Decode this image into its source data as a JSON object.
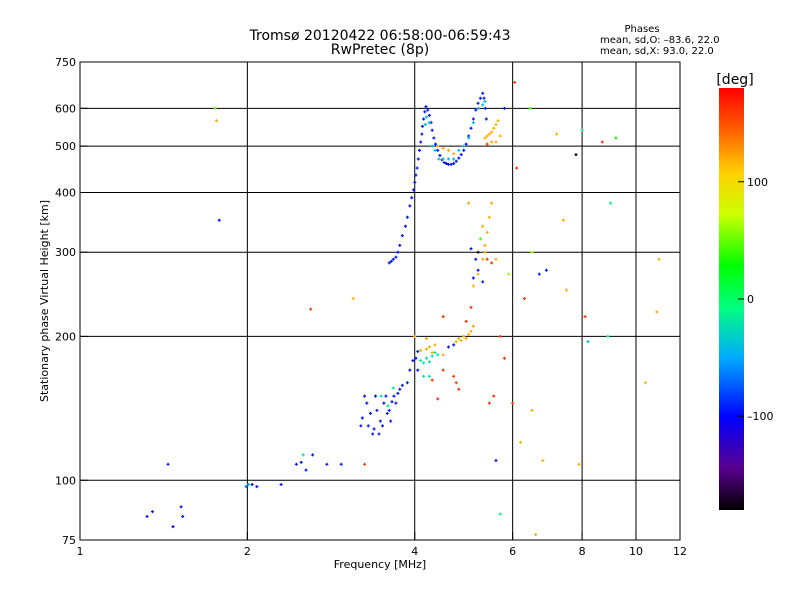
{
  "chart_data": {
    "type": "scatter",
    "title": "Tromsø 20120422 06:58:00-06:59:43",
    "subtitle": "RwPretec (8p)",
    "xlabel": "Frequency [MHz]",
    "ylabel": "Stationary phase Virtual Height [km]",
    "x_scale": "log",
    "y_scale": "log",
    "xlim": [
      1,
      12
    ],
    "ylim": [
      75,
      750
    ],
    "x_ticks": [
      1,
      2,
      4,
      6,
      8,
      10,
      12
    ],
    "x_tick_labels": [
      "1",
      "2",
      "4",
      "6",
      "8",
      "10",
      "12"
    ],
    "y_ticks": [
      75,
      100,
      200,
      300,
      400,
      500,
      600,
      750
    ],
    "y_tick_labels": [
      "75",
      "100",
      "200",
      "300",
      "400",
      "500",
      "600",
      "750"
    ],
    "grid": true,
    "phases_box": {
      "title": "Phases",
      "line_o": "mean, sd,O: –83.6, 22.0",
      "line_x": "mean, sd,X:  93.0, 22.0"
    },
    "colorbar": {
      "label": "[deg]",
      "range": [
        -180,
        180
      ],
      "ticks": [
        100,
        0,
        -100
      ],
      "tick_labels": [
        "100",
        "0",
        "–100"
      ]
    },
    "series": [
      {
        "points": [
          [
            1.78,
            350,
            -95
          ],
          [
            1.44,
            108,
            -95
          ],
          [
            1.32,
            84,
            -95
          ],
          [
            1.35,
            86,
            -95
          ],
          [
            1.47,
            80,
            -100
          ],
          [
            1.52,
            88,
            -100
          ],
          [
            1.53,
            84,
            -95
          ],
          [
            1.99,
            97,
            -70
          ],
          [
            2.01,
            98,
            -40
          ],
          [
            2.04,
            98,
            -95
          ],
          [
            2.08,
            97,
            -95
          ],
          [
            2.3,
            98,
            -95
          ],
          [
            2.45,
            108,
            -95
          ],
          [
            2.5,
            109,
            -95
          ],
          [
            2.52,
            113,
            -20
          ],
          [
            2.55,
            105,
            -95
          ],
          [
            2.62,
            113,
            -95
          ],
          [
            2.78,
            108,
            -95
          ],
          [
            2.95,
            108,
            -95
          ],
          [
            3.2,
            130,
            -95
          ],
          [
            3.22,
            135,
            -95
          ],
          [
            3.25,
            150,
            -95
          ],
          [
            3.28,
            145,
            -95
          ],
          [
            3.3,
            130,
            -95
          ],
          [
            3.33,
            138,
            -95
          ],
          [
            3.36,
            125,
            -95
          ],
          [
            3.38,
            128,
            -95
          ],
          [
            3.4,
            150,
            -95
          ],
          [
            3.42,
            140,
            -95
          ],
          [
            3.45,
            125,
            -95
          ],
          [
            3.47,
            133,
            -95
          ],
          [
            3.5,
            130,
            -95
          ],
          [
            3.52,
            145,
            -95
          ],
          [
            3.55,
            150,
            -95
          ],
          [
            3.57,
            138,
            -95
          ],
          [
            3.6,
            140,
            -95
          ],
          [
            3.62,
            133,
            -95
          ],
          [
            3.64,
            146,
            -95
          ],
          [
            3.67,
            150,
            -95
          ],
          [
            3.7,
            145,
            -95
          ],
          [
            3.73,
            152,
            -95
          ],
          [
            3.76,
            155,
            -95
          ],
          [
            3.8,
            158,
            -95
          ],
          [
            3.58,
            143,
            -20
          ],
          [
            3.48,
            150,
            -20
          ],
          [
            3.66,
            156,
            -20
          ],
          [
            3.88,
            160,
            -95
          ],
          [
            3.92,
            170,
            -95
          ],
          [
            3.97,
            178,
            -95
          ],
          [
            4.02,
            180,
            -95
          ],
          [
            4.05,
            186,
            -95
          ],
          [
            4.1,
            178,
            -20
          ],
          [
            4.15,
            176,
            -20
          ],
          [
            4.2,
            180,
            -20
          ],
          [
            4.25,
            177,
            -20
          ],
          [
            4.3,
            182,
            -20
          ],
          [
            4.35,
            185,
            -20
          ],
          [
            4.4,
            183,
            -20
          ],
          [
            4.2,
            188,
            120
          ],
          [
            4.25,
            190,
            120
          ],
          [
            4.3,
            185,
            120
          ],
          [
            4.35,
            192,
            120
          ],
          [
            4.1,
            187,
            120
          ],
          [
            4.5,
            183,
            120
          ],
          [
            4.6,
            190,
            -95
          ],
          [
            4.7,
            192,
            -95
          ],
          [
            4.75,
            195,
            120
          ],
          [
            4.8,
            198,
            120
          ],
          [
            4.85,
            196,
            120
          ],
          [
            4.9,
            200,
            120
          ],
          [
            4.95,
            198,
            120
          ],
          [
            5.0,
            202,
            120
          ],
          [
            5.05,
            205,
            120
          ],
          [
            5.1,
            210,
            120
          ],
          [
            4.5,
            170,
            160
          ],
          [
            4.7,
            165,
            160
          ],
          [
            4.75,
            160,
            160
          ],
          [
            4.8,
            155,
            160
          ],
          [
            4.4,
            148,
            160
          ],
          [
            4.3,
            162,
            160
          ],
          [
            4.95,
            215,
            160
          ],
          [
            5.05,
            230,
            160
          ],
          [
            5.1,
            255,
            120
          ],
          [
            5.2,
            270,
            120
          ],
          [
            5.3,
            290,
            120
          ],
          [
            5.35,
            310,
            120
          ],
          [
            5.4,
            330,
            120
          ],
          [
            5.45,
            355,
            120
          ],
          [
            5.5,
            380,
            120
          ],
          [
            5.2,
            275,
            -95
          ],
          [
            5.3,
            260,
            -95
          ],
          [
            5.15,
            290,
            -95
          ],
          [
            5.1,
            265,
            -95
          ],
          [
            5.05,
            305,
            -95
          ],
          [
            3.6,
            285,
            -95
          ],
          [
            3.63,
            287,
            -95
          ],
          [
            3.66,
            290,
            -95
          ],
          [
            3.7,
            293,
            -95
          ],
          [
            3.73,
            300,
            -95
          ],
          [
            3.76,
            310,
            -95
          ],
          [
            3.8,
            325,
            -95
          ],
          [
            3.85,
            340,
            -95
          ],
          [
            3.88,
            355,
            -95
          ],
          [
            3.92,
            375,
            -95
          ],
          [
            3.95,
            390,
            -95
          ],
          [
            3.98,
            405,
            -95
          ],
          [
            4.0,
            420,
            -95
          ],
          [
            4.02,
            435,
            -95
          ],
          [
            4.04,
            450,
            -95
          ],
          [
            4.06,
            470,
            -95
          ],
          [
            4.08,
            490,
            -95
          ],
          [
            4.1,
            510,
            -95
          ],
          [
            4.12,
            530,
            -95
          ],
          [
            4.13,
            550,
            -95
          ],
          [
            4.15,
            570,
            -95
          ],
          [
            4.17,
            590,
            -95
          ],
          [
            4.19,
            605,
            -95
          ],
          [
            4.22,
            595,
            -95
          ],
          [
            4.25,
            580,
            -95
          ],
          [
            4.28,
            560,
            -95
          ],
          [
            4.3,
            540,
            -95
          ],
          [
            4.33,
            520,
            -95
          ],
          [
            4.36,
            505,
            -95
          ],
          [
            4.4,
            490,
            -95
          ],
          [
            4.44,
            478,
            -95
          ],
          [
            4.48,
            468,
            -95
          ],
          [
            4.52,
            462,
            -95
          ],
          [
            4.56,
            460,
            -95
          ],
          [
            4.6,
            458,
            -95
          ],
          [
            4.65,
            458,
            -95
          ],
          [
            4.7,
            460,
            -95
          ],
          [
            4.75,
            465,
            -95
          ],
          [
            4.8,
            472,
            -95
          ],
          [
            4.85,
            480,
            -95
          ],
          [
            4.9,
            490,
            -95
          ],
          [
            4.95,
            505,
            -95
          ],
          [
            5.0,
            525,
            -95
          ],
          [
            5.05,
            545,
            -95
          ],
          [
            5.1,
            570,
            -95
          ],
          [
            5.15,
            595,
            -95
          ],
          [
            5.2,
            615,
            -95
          ],
          [
            5.25,
            630,
            -95
          ],
          [
            5.3,
            645,
            -95
          ],
          [
            5.33,
            630,
            -95
          ],
          [
            5.36,
            600,
            -95
          ],
          [
            5.38,
            570,
            -95
          ],
          [
            4.18,
            555,
            -40
          ],
          [
            4.2,
            575,
            -40
          ],
          [
            4.25,
            560,
            -40
          ],
          [
            4.3,
            500,
            -40
          ],
          [
            4.35,
            490,
            -40
          ],
          [
            4.42,
            470,
            -40
          ],
          [
            4.5,
            470,
            -40
          ],
          [
            4.6,
            470,
            -40
          ],
          [
            4.7,
            470,
            -40
          ],
          [
            4.8,
            490,
            -40
          ],
          [
            4.9,
            500,
            -40
          ],
          [
            5.0,
            520,
            -40
          ],
          [
            5.1,
            560,
            -40
          ],
          [
            5.2,
            600,
            -40
          ],
          [
            5.3,
            610,
            -40
          ],
          [
            5.35,
            620,
            -40
          ],
          [
            4.4,
            500,
            120
          ],
          [
            4.5,
            495,
            120
          ],
          [
            4.6,
            490,
            120
          ],
          [
            4.7,
            482,
            120
          ],
          [
            5.35,
            520,
            120
          ],
          [
            5.4,
            525,
            120
          ],
          [
            5.45,
            530,
            120
          ],
          [
            5.5,
            535,
            120
          ],
          [
            5.55,
            545,
            120
          ],
          [
            5.6,
            555,
            120
          ],
          [
            5.65,
            565,
            120
          ],
          [
            5.5,
            510,
            120
          ],
          [
            5.6,
            510,
            120
          ],
          [
            5.7,
            525,
            120
          ],
          [
            5.4,
            505,
            160
          ],
          [
            5.8,
            600,
            -95
          ],
          [
            6.1,
            450,
            160
          ],
          [
            6.05,
            680,
            160
          ],
          [
            5.9,
            270,
            60
          ],
          [
            6.3,
            240,
            160
          ],
          [
            6.45,
            600,
            40
          ],
          [
            6.5,
            300,
            60
          ],
          [
            6.7,
            270,
            -95
          ],
          [
            6.9,
            275,
            -95
          ],
          [
            7.2,
            530,
            120
          ],
          [
            7.4,
            350,
            120
          ],
          [
            7.5,
            250,
            120
          ],
          [
            7.8,
            480,
            -180
          ],
          [
            8.0,
            540,
            -10
          ],
          [
            8.1,
            220,
            160
          ],
          [
            8.2,
            195,
            -40
          ],
          [
            8.7,
            510,
            160
          ],
          [
            8.9,
            200,
            -10
          ],
          [
            9.0,
            380,
            -10
          ],
          [
            9.2,
            520,
            30
          ],
          [
            10.4,
            160,
            120
          ],
          [
            11.0,
            290,
            120
          ],
          [
            10.9,
            225,
            120
          ],
          [
            5.0,
            380,
            120
          ],
          [
            5.3,
            340,
            120
          ],
          [
            5.25,
            320,
            40
          ],
          [
            5.2,
            300,
            -180
          ],
          [
            5.35,
            300,
            120
          ],
          [
            5.4,
            290,
            160
          ],
          [
            5.5,
            285,
            160
          ],
          [
            5.6,
            290,
            120
          ],
          [
            5.7,
            200,
            160
          ],
          [
            5.8,
            180,
            160
          ],
          [
            5.55,
            150,
            160
          ],
          [
            5.45,
            145,
            160
          ],
          [
            5.6,
            110,
            -95
          ],
          [
            5.7,
            85,
            -10
          ],
          [
            6.0,
            145,
            160
          ],
          [
            6.5,
            140,
            120
          ],
          [
            6.2,
            120,
            120
          ],
          [
            6.8,
            110,
            120
          ],
          [
            7.9,
            108,
            120
          ],
          [
            6.6,
            77,
            120
          ],
          [
            3.1,
            240,
            120
          ],
          [
            2.6,
            228,
            160
          ],
          [
            3.25,
            108,
            160
          ],
          [
            1.75,
            600,
            50
          ],
          [
            1.76,
            565,
            120
          ],
          [
            4.5,
            220,
            160
          ],
          [
            4.2,
            198,
            120
          ],
          [
            4.0,
            200,
            120
          ],
          [
            4.05,
            170,
            -95
          ],
          [
            4.15,
            165,
            -20
          ],
          [
            4.25,
            165,
            -20
          ]
        ]
      }
    ]
  }
}
